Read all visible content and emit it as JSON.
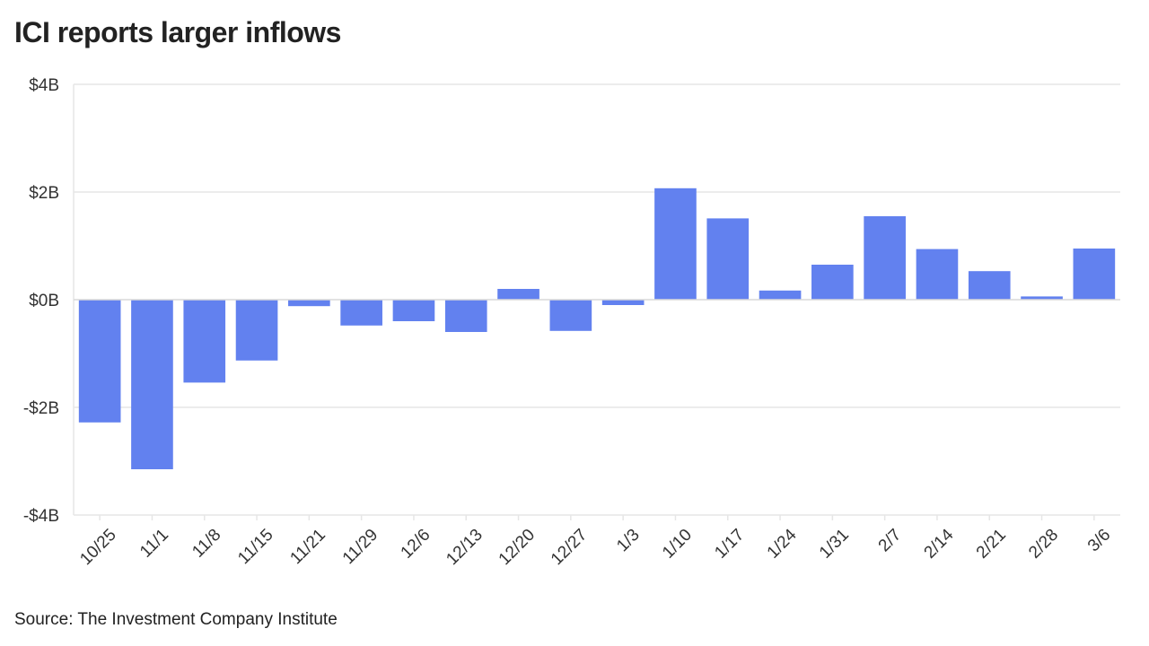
{
  "chart_data": {
    "type": "bar",
    "title": "ICI reports larger inflows",
    "source": "Source: The Investment Company Institute",
    "xlabel": "",
    "ylabel": "",
    "categories": [
      "10/25",
      "11/1",
      "11/8",
      "11/15",
      "11/21",
      "11/29",
      "12/6",
      "12/13",
      "12/20",
      "12/27",
      "1/3",
      "1/10",
      "1/17",
      "1/24",
      "1/31",
      "2/7",
      "2/14",
      "2/21",
      "2/28",
      "3/6"
    ],
    "values": [
      -2.28,
      -3.15,
      -1.54,
      -1.13,
      -0.12,
      -0.48,
      -0.4,
      -0.6,
      0.2,
      -0.58,
      -0.1,
      2.07,
      1.51,
      0.17,
      0.65,
      1.55,
      0.94,
      0.53,
      0.06,
      0.95
    ],
    "units": "billions USD",
    "ylim": [
      -4,
      4
    ],
    "yticks": [
      4,
      2,
      0,
      -2,
      -4
    ],
    "ytick_labels": [
      "$4B",
      "$2B",
      "$0B",
      "-$2B",
      "-$4B"
    ],
    "grid": true,
    "bar_color": "#6281ef",
    "grid_color": "#e6e6e6",
    "zero_line_color": "#d9d9d9"
  }
}
